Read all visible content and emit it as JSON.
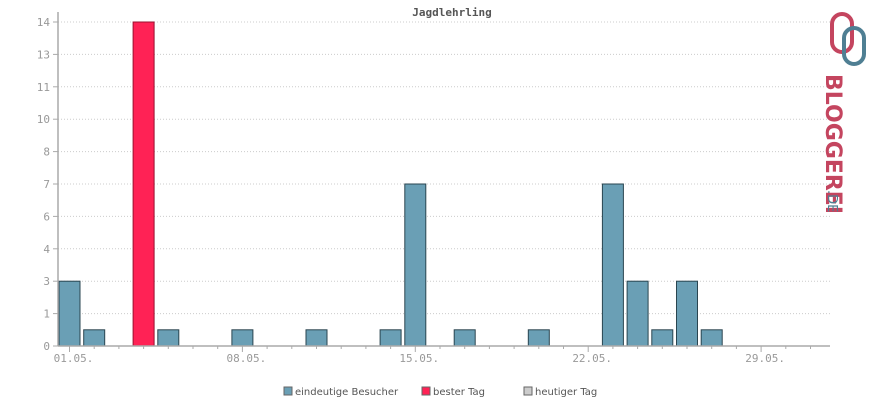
{
  "chart_data": {
    "type": "bar",
    "title": "Jagdlehrling",
    "xlabel": "",
    "ylabel": "",
    "ylim": [
      0,
      14
    ],
    "ytick_values": [
      0,
      1,
      2,
      3,
      4,
      5,
      6,
      7,
      8,
      9,
      10
    ],
    "ytick_labels": [
      "0",
      "1",
      "3",
      "4",
      "6",
      "7",
      "8",
      "10",
      "11",
      "13",
      "14"
    ],
    "xtick_labels": [
      {
        "label": "01.05.",
        "day": 1
      },
      {
        "label": "08.05.",
        "day": 8
      },
      {
        "label": "15.05.",
        "day": 15
      },
      {
        "label": "22.05.",
        "day": 22
      },
      {
        "label": "29.05.",
        "day": 29
      }
    ],
    "days": 31,
    "values": [
      2,
      1,
      0,
      14,
      1,
      0,
      0,
      1,
      0,
      0,
      1,
      0,
      0,
      1,
      7,
      0,
      1,
      0,
      0,
      1,
      0,
      0,
      7,
      2,
      1,
      2,
      1,
      0,
      0,
      0,
      0
    ],
    "best_day_index": 3,
    "grid": true,
    "legend_position": "bottom",
    "legend": [
      {
        "label": "eindeutige Besucher",
        "color": "#6a9fb5"
      },
      {
        "label": "bester Tag",
        "color": "#ff2255"
      },
      {
        "label": "heutiger Tag",
        "color": "#cccccc"
      }
    ],
    "colors": {
      "bar": "#6a9fb5",
      "best": "#ff2255",
      "today": "#cccccc",
      "outline": "#2a4550",
      "grid": "#cccccc",
      "axis": "#aaaaaa"
    }
  },
  "logo": {
    "brand_name": "BLOGGEREI",
    "brand_suffix": ".DE",
    "colors": {
      "red": "#c4455f",
      "blue": "#4f7f93",
      "text": "#c4455f"
    }
  }
}
